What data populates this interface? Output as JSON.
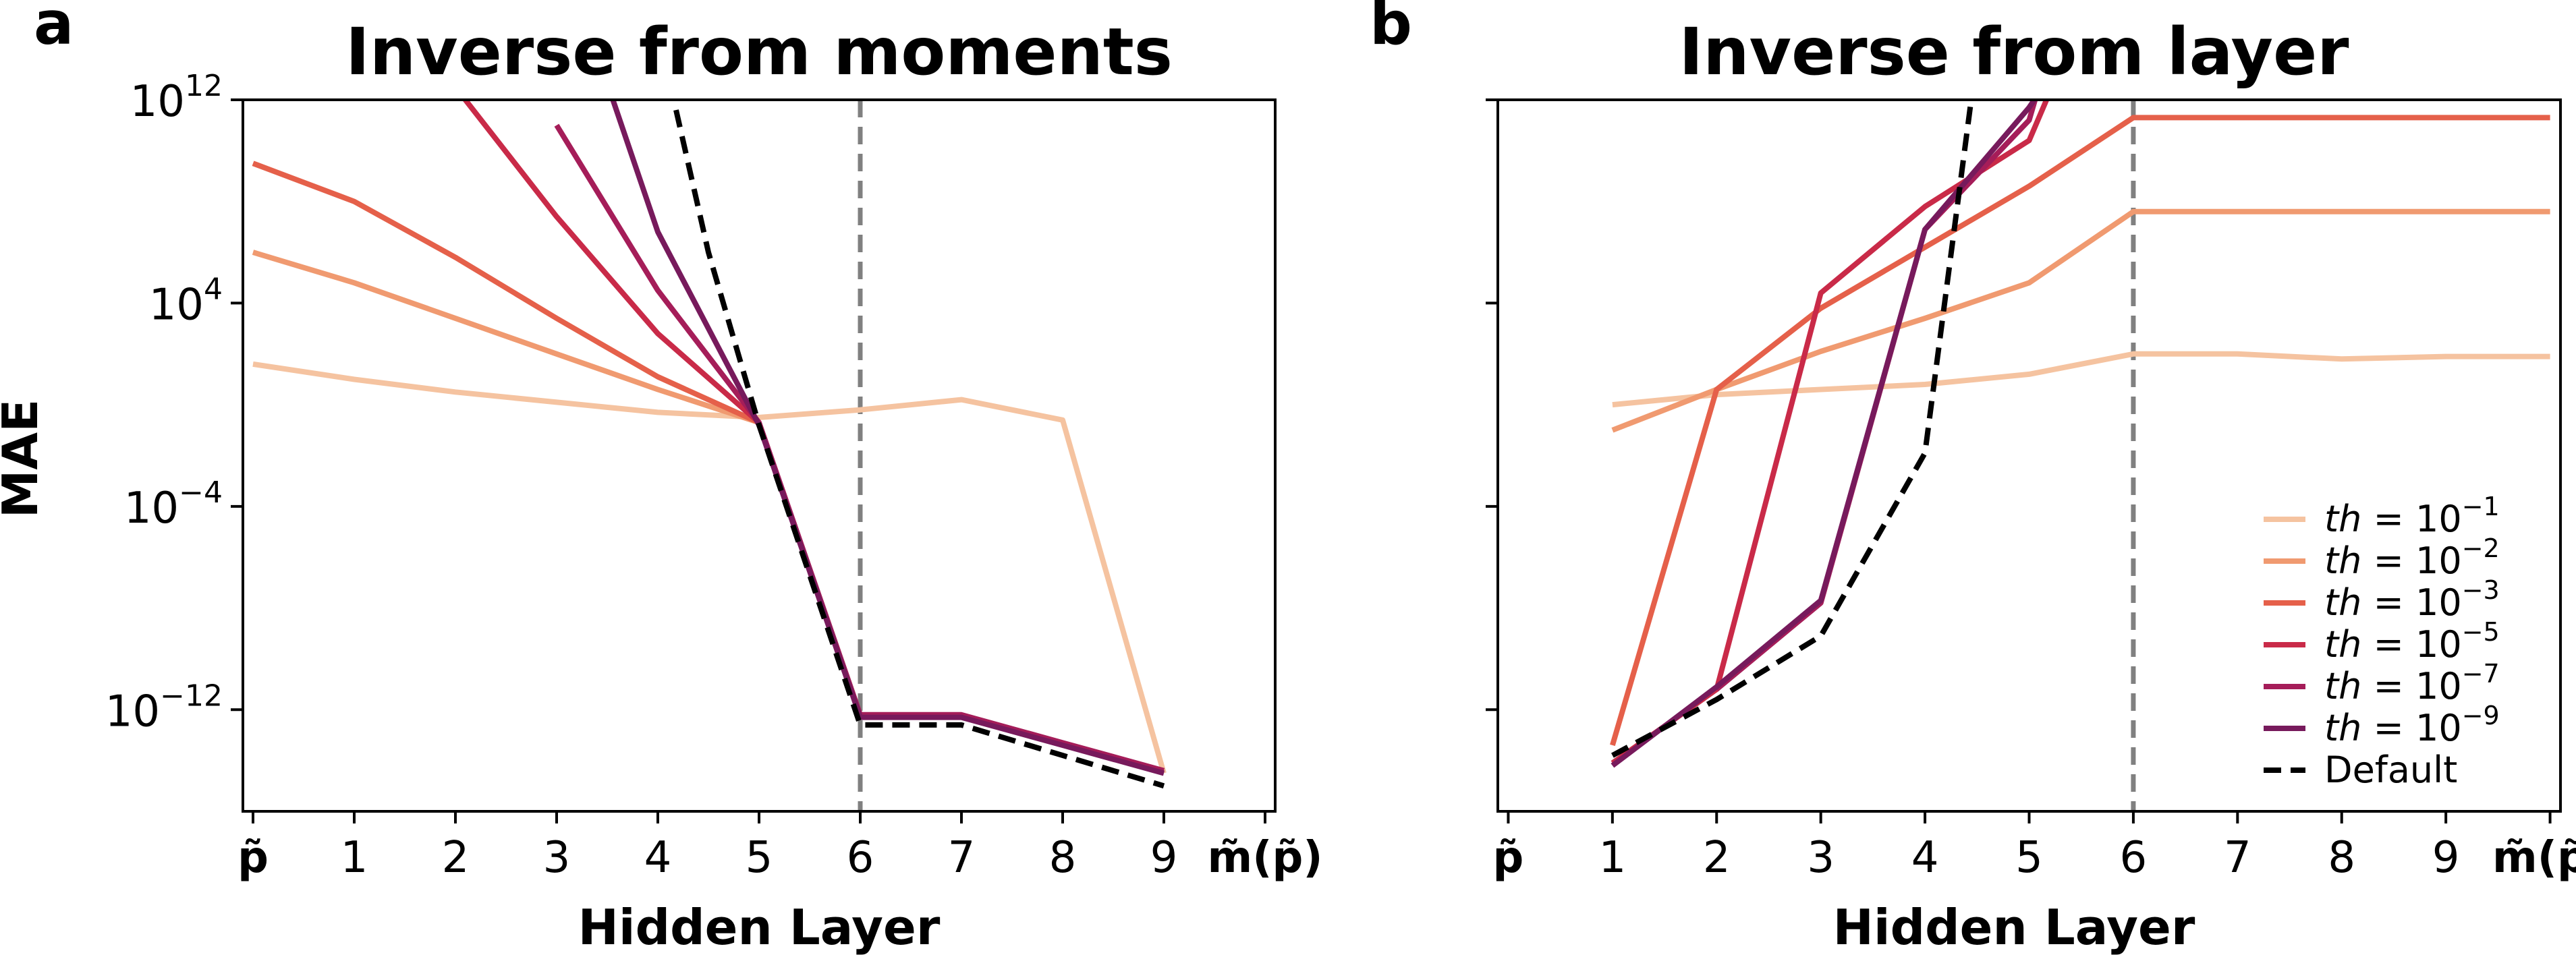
{
  "chart_data": [
    {
      "type": "line",
      "panel_letter": "a",
      "title": "Inverse from moments",
      "xlabel": "Hidden Layer",
      "ylabel": "MAE",
      "yscale": "log",
      "ylim_exp": [
        -16,
        12
      ],
      "xlim": [
        -0.1,
        10.1
      ],
      "x_ticks": [
        0,
        1,
        2,
        3,
        4,
        5,
        6,
        7,
        8,
        9,
        10
      ],
      "x_tick_labels": [
        "p̃",
        "1",
        "2",
        "3",
        "4",
        "5",
        "6",
        "7",
        "8",
        "9",
        "m̃(p̃)"
      ],
      "y_tick_exp": [
        12,
        4,
        -4,
        -12
      ],
      "y_tick_base": "10",
      "vline_x": 6,
      "grid": false,
      "series": [
        {
          "name": "th = 10⁻¹",
          "color": "#f5c3a0",
          "dash": false,
          "x": [
            0,
            1,
            2,
            3,
            4,
            5,
            6,
            7,
            8,
            9
          ],
          "y_exp": [
            1.6,
            1.0,
            0.5,
            0.1,
            -0.3,
            -0.5,
            -0.2,
            0.2,
            -0.6,
            -14.5
          ]
        },
        {
          "name": "th = 10⁻²",
          "color": "#f09a70",
          "dash": false,
          "x": [
            0,
            1,
            2,
            3,
            4,
            5
          ],
          "y_exp": [
            6.0,
            4.8,
            3.4,
            2.0,
            0.6,
            -0.7
          ]
        },
        {
          "name": "th = 10⁻³",
          "color": "#e5604a",
          "dash": false,
          "x": [
            0,
            1,
            2,
            3,
            4,
            5
          ],
          "y_exp": [
            9.5,
            8.0,
            5.8,
            3.4,
            1.1,
            -0.7
          ]
        },
        {
          "name": "th = 10⁻⁵",
          "color": "#c92a48",
          "dash": false,
          "x": [
            1,
            2,
            3,
            4,
            5
          ],
          "y_exp": [
            15.5,
            12.5,
            7.4,
            2.8,
            -0.7
          ]
        },
        {
          "name": "th = 10⁻⁷",
          "color": "#a51d59",
          "dash": false,
          "x": [
            3,
            4,
            5,
            6,
            7,
            8,
            9
          ],
          "y_exp": [
            11.0,
            4.5,
            -0.7,
            -12.2,
            -12.2,
            -13.3,
            -14.4
          ]
        },
        {
          "name": "th = 10⁻⁹",
          "color": "#771a5c",
          "dash": false,
          "x": [
            3.3,
            4,
            5,
            6,
            7,
            8,
            9
          ],
          "y_exp": [
            15.0,
            6.8,
            -0.8,
            -12.3,
            -12.3,
            -13.4,
            -14.5
          ]
        },
        {
          "name": "Default",
          "color": "#000000",
          "dash": true,
          "x": [
            4.18,
            4.5,
            5,
            6,
            7,
            8,
            9
          ],
          "y_exp": [
            11.6,
            6.0,
            -0.8,
            -12.6,
            -12.6,
            -13.8,
            -15.0
          ]
        }
      ]
    },
    {
      "type": "line",
      "panel_letter": "b",
      "title": "Inverse from layer",
      "xlabel": "Hidden Layer",
      "ylabel": "",
      "yscale": "log",
      "ylim_exp": [
        -16,
        12
      ],
      "xlim": [
        -0.1,
        10.1
      ],
      "x_ticks": [
        0,
        1,
        2,
        3,
        4,
        5,
        6,
        7,
        8,
        9,
        10
      ],
      "x_tick_labels": [
        "p̃",
        "1",
        "2",
        "3",
        "4",
        "5",
        "6",
        "7",
        "8",
        "9",
        "m̃(p̃)"
      ],
      "vline_x": 6,
      "grid": false,
      "legend_position": "lower right",
      "series": [
        {
          "name": "th = 10⁻¹",
          "color": "#f5c3a0",
          "dash": false,
          "x": [
            1,
            2,
            3,
            4,
            5,
            6,
            7,
            8,
            9,
            10
          ],
          "y_exp": [
            0.0,
            0.4,
            0.6,
            0.8,
            1.2,
            2.0,
            2.0,
            1.8,
            1.9,
            1.9
          ]
        },
        {
          "name": "th = 10⁻²",
          "color": "#f09a70",
          "dash": false,
          "x": [
            1,
            2,
            3,
            4,
            5,
            6,
            7,
            8,
            9,
            10
          ],
          "y_exp": [
            -1.0,
            0.6,
            2.1,
            3.4,
            4.8,
            7.6,
            7.6,
            7.6,
            7.6,
            7.6
          ]
        },
        {
          "name": "th = 10⁻³",
          "color": "#e5604a",
          "dash": false,
          "x": [
            1,
            2,
            3,
            4,
            5,
            6,
            7,
            8,
            9,
            10
          ],
          "y_exp": [
            -13.4,
            0.6,
            3.8,
            6.2,
            8.6,
            11.3,
            11.3,
            11.3,
            11.3,
            11.3
          ]
        },
        {
          "name": "th = 10⁻⁵",
          "color": "#c92a48",
          "dash": false,
          "x": [
            1,
            2,
            3,
            4,
            5,
            5.25
          ],
          "y_exp": [
            -14.1,
            -11.2,
            4.4,
            7.8,
            10.4,
            12.8
          ]
        },
        {
          "name": "th = 10⁻⁷",
          "color": "#a51d59",
          "dash": false,
          "x": [
            2,
            3,
            4,
            5,
            5.1
          ],
          "y_exp": [
            -11.2,
            -7.8,
            6.9,
            11.2,
            12.6
          ]
        },
        {
          "name": "th = 10⁻⁹",
          "color": "#771a5c",
          "dash": false,
          "x": [
            1,
            2,
            3,
            4,
            5,
            5.2
          ],
          "y_exp": [
            -14.2,
            -11.1,
            -7.7,
            6.9,
            11.7,
            12.9
          ]
        },
        {
          "name": "Default",
          "color": "#000000",
          "dash": true,
          "x": [
            1,
            2,
            3,
            4,
            4.45
          ],
          "y_exp": [
            -13.8,
            -11.6,
            -9.1,
            -1.9,
            12.2
          ]
        }
      ]
    }
  ],
  "legend": {
    "items": [
      {
        "prefix": "th = 10",
        "sup": "−1",
        "color": "#f5c3a0",
        "dash": false
      },
      {
        "prefix": "th = 10",
        "sup": "−2",
        "color": "#f09a70",
        "dash": false
      },
      {
        "prefix": "th = 10",
        "sup": "−3",
        "color": "#e5604a",
        "dash": false
      },
      {
        "prefix": "th = 10",
        "sup": "−5",
        "color": "#c92a48",
        "dash": false
      },
      {
        "prefix": "th = 10",
        "sup": "−7",
        "color": "#a51d59",
        "dash": false
      },
      {
        "prefix": "th = 10",
        "sup": "−9",
        "color": "#771a5c",
        "dash": false
      },
      {
        "prefix": "Default",
        "sup": "",
        "color": "#000000",
        "dash": true
      }
    ]
  },
  "y_tick_labels": [
    {
      "base": "10",
      "exp": "12"
    },
    {
      "base": "10",
      "exp": "4"
    },
    {
      "base": "10",
      "exp": "−4"
    },
    {
      "base": "10",
      "exp": "−12"
    }
  ]
}
